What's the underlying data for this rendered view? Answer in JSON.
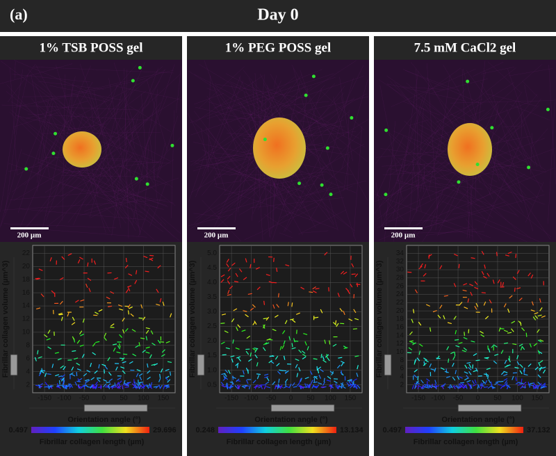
{
  "header": {
    "label": "(a)",
    "title": "Day 0"
  },
  "panels": [
    {
      "title": "1% TSB POSS gel",
      "scale_bar": "200 µm",
      "plot": {
        "y_label": "Fibrillar collagen volume (µm^3)",
        "y_ticks": [
          "2",
          "4",
          "6",
          "8",
          "10",
          "12",
          "14",
          "16",
          "18",
          "20",
          "22"
        ],
        "x_label": "Orientation angle (°)",
        "x_ticks": [
          "-150",
          "-100",
          "-50",
          "0",
          "50",
          "100",
          "150"
        ],
        "colorbar_min": "0.497",
        "colorbar_max": "29.696",
        "colorbar_label": "Fibrillar collagen length (µm)"
      }
    },
    {
      "title": "1% PEG POSS gel",
      "scale_bar": "200 µm",
      "plot": {
        "y_label": "Fibrillar collagen volume (µm^3)",
        "y_ticks": [
          "0.5",
          "1.0",
          "1.5",
          "2.0",
          "2.5",
          "3.0",
          "3.5",
          "4.0",
          "4.5",
          "5.0"
        ],
        "x_label": "Orientation angle (°)",
        "x_ticks": [
          "-150",
          "-100",
          "-50",
          "0",
          "50",
          "100",
          "150"
        ],
        "colorbar_min": "0.248",
        "colorbar_max": "13.134",
        "colorbar_label": "Fibrillar collagen length (µm)"
      }
    },
    {
      "title": "7.5 mM CaCl2 gel",
      "scale_bar": "200 µm",
      "plot": {
        "y_label": "Fibrillar collagen volume (µm^3)",
        "y_ticks": [
          "2",
          "4",
          "6",
          "8",
          "10",
          "12",
          "14",
          "16",
          "18",
          "20",
          "22",
          "24",
          "26",
          "28",
          "30",
          "32",
          "34"
        ],
        "x_label": "Orientation angle (°)",
        "x_ticks": [
          "-150",
          "-100",
          "-50",
          "0",
          "50",
          "100",
          "150"
        ],
        "colorbar_min": "0.497",
        "colorbar_max": "37.132",
        "colorbar_label": "Fibrillar collagen length (µm)"
      }
    }
  ]
}
